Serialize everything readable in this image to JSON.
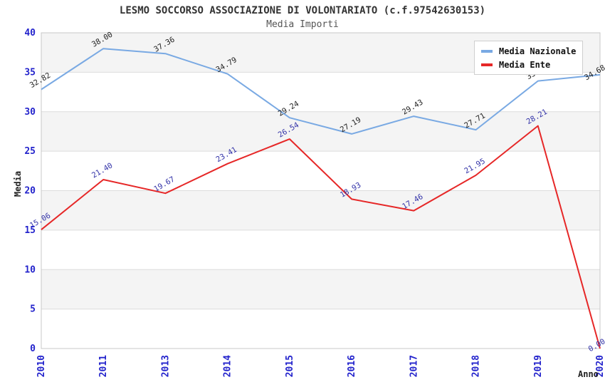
{
  "chart_data": {
    "type": "line",
    "title": "LESMO SOCCORSO ASSOCIAZIONE DI VOLONTARIATO (c.f.97542630153)",
    "subtitle": "Media Importi",
    "xlabel": "Anno",
    "ylabel": "Media",
    "categories": [
      "2010",
      "2011",
      "2013",
      "2014",
      "2015",
      "2016",
      "2017",
      "2018",
      "2019",
      "2020"
    ],
    "ylim": [
      0,
      40
    ],
    "ytick_step": 5,
    "ytick_labels": [
      "0",
      "5",
      "10",
      "15",
      "20",
      "25",
      "30",
      "35",
      "40"
    ],
    "grid": true,
    "legend": {
      "position": "top-right",
      "entries": [
        "Media Nazionale",
        "Media Ente"
      ]
    },
    "series": [
      {
        "name": "Media Nazionale",
        "color": "#79A9E3",
        "label_color": "#222222",
        "values": [
          32.82,
          38.0,
          37.36,
          34.79,
          29.24,
          27.19,
          29.43,
          27.71,
          33.9,
          34.68
        ]
      },
      {
        "name": "Media Ente",
        "color": "#E62727",
        "label_color": "#3232A8",
        "values": [
          15.06,
          21.4,
          19.67,
          23.41,
          26.54,
          18.93,
          17.46,
          21.95,
          28.21,
          0.0
        ]
      }
    ],
    "note": "2019 Media Nazionale value label is hidden behind the legend box; value estimated from pixel position.",
    "colors": {
      "band_gray": "#F4F4F4",
      "band_white": "#FFFFFF",
      "gridline": "#DCDCDC",
      "plot_border": "#C8C8C8",
      "axis_tick_text": "#2323CC",
      "title_text": "#333333",
      "subtitle_text": "#555555"
    }
  }
}
